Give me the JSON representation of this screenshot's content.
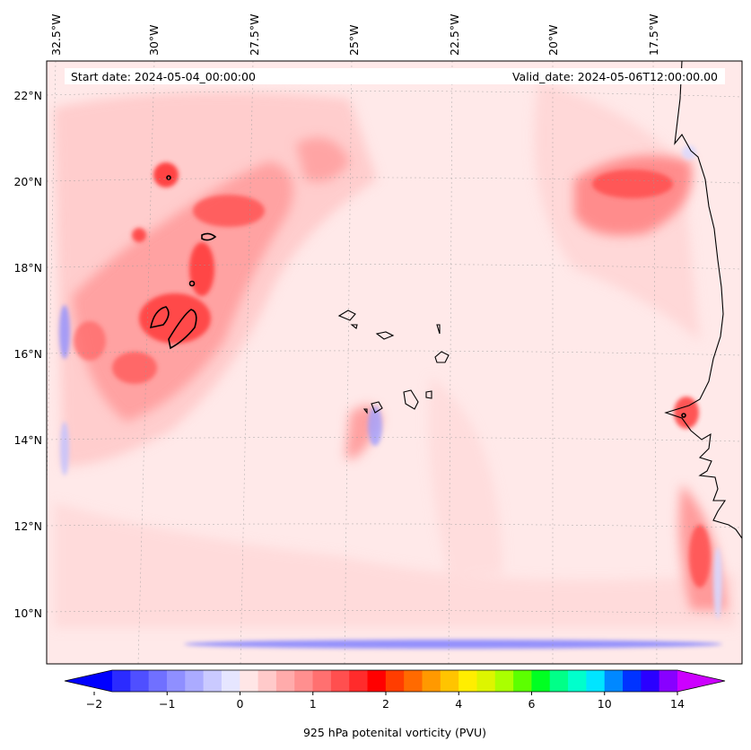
{
  "header": {
    "start_date": "Start date: 2024-05-04_00:00:00",
    "valid_date": "Valid_date: 2024-05-06T12:00:00.00"
  },
  "map": {
    "lon_labels": [
      "32.5°W",
      "30°W",
      "27.5°W",
      "25°W",
      "22.5°W",
      "20°W",
      "17.5°W"
    ],
    "lat_labels": [
      "22°N",
      "20°N",
      "18°N",
      "16°N",
      "14°N",
      "12°N",
      "10°N"
    ],
    "background_color": "#ffe9e9",
    "gridlines": true
  },
  "colorbar": {
    "label": "925 hPa potenital vorticity (PVU)",
    "ticks": [
      "−2",
      "−1",
      "0",
      "1",
      "2",
      "4",
      "6",
      "10",
      "14"
    ],
    "colors": [
      "#0000ff",
      "#2b2bff",
      "#4f4fff",
      "#7070ff",
      "#8f8fff",
      "#ababff",
      "#cacaff",
      "#e6e6ff",
      "#ffe6e6",
      "#ffcaca",
      "#ffabab",
      "#ff8f8f",
      "#ff7070",
      "#ff4f4f",
      "#ff2b2b",
      "#ff0000",
      "#ff3d00",
      "#ff6a00",
      "#ff9900",
      "#ffc400",
      "#ffee00",
      "#ddf500",
      "#aaff00",
      "#5cff00",
      "#00ff22",
      "#00ff88",
      "#00ffcc",
      "#00e5ff",
      "#0088ff",
      "#0033ff",
      "#2a00ff",
      "#8800ff",
      "#cc00ff"
    ]
  }
}
